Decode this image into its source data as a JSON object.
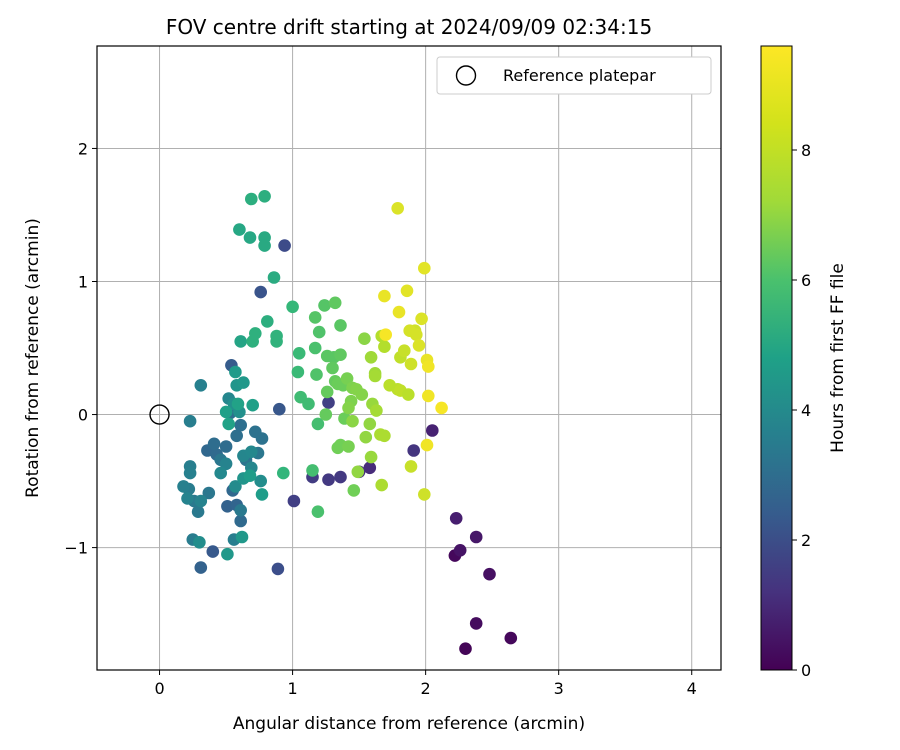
{
  "chart_data": {
    "type": "scatter",
    "title": "FOV centre drift starting at 2024/09/09 02:34:15",
    "xlabel": "Angular distance from reference (arcmin)",
    "ylabel": "Rotation from reference (arcmin)",
    "xlim": [
      -0.47,
      4.22
    ],
    "ylim": [
      -1.92,
      2.77
    ],
    "xticks": [
      0,
      1,
      2,
      3,
      4
    ],
    "xtick_labels": [
      "0",
      "1",
      "2",
      "3",
      "4"
    ],
    "yticks": [
      -1,
      0,
      1,
      2
    ],
    "ytick_labels": [
      "−1",
      "0",
      "1",
      "2"
    ],
    "grid": true,
    "colormap": "viridis",
    "colorbar": {
      "label": "Hours from first FF file",
      "range": [
        0,
        9.6
      ],
      "ticks": [
        0,
        2,
        4,
        6,
        8
      ],
      "tick_labels": [
        "0",
        "2",
        "4",
        "6",
        "8"
      ]
    },
    "legend": {
      "position": "top-right",
      "entries": [
        "Reference platepar"
      ]
    },
    "reference_point": {
      "x": 0,
      "y": 0
    },
    "point_order": "x, y, hours from first FF file",
    "points": [
      [
        2.22,
        -1.06,
        0.2
      ],
      [
        2.3,
        -1.76,
        0.1
      ],
      [
        2.38,
        -1.57,
        0.3
      ],
      [
        2.48,
        -1.2,
        0.4
      ],
      [
        2.26,
        -1.02,
        0.5
      ],
      [
        2.64,
        -1.68,
        0.2
      ],
      [
        2.38,
        -0.92,
        0.6
      ],
      [
        2.23,
        -0.78,
        0.8
      ],
      [
        2.05,
        -0.12,
        0.9
      ],
      [
        1.58,
        -0.4,
        1.2
      ],
      [
        1.5,
        -0.43,
        1.3
      ],
      [
        1.91,
        -0.27,
        1.5
      ],
      [
        1.36,
        -0.47,
        1.6
      ],
      [
        1.27,
        -0.49,
        1.6
      ],
      [
        1.15,
        -0.47,
        1.7
      ],
      [
        1.01,
        -0.65,
        1.8
      ],
      [
        1.27,
        0.09,
        1.8
      ],
      [
        0.94,
        1.27,
        2.2
      ],
      [
        0.89,
        -1.16,
        2.3
      ],
      [
        0.76,
        0.92,
        2.5
      ],
      [
        0.9,
        0.04,
        2.6
      ],
      [
        0.4,
        -1.03,
        2.7
      ],
      [
        0.54,
        0.37,
        2.8
      ],
      [
        0.31,
        -1.15,
        3.0
      ],
      [
        0.51,
        -0.69,
        3.0
      ],
      [
        0.58,
        -0.68,
        3.1
      ],
      [
        0.55,
        -0.57,
        3.2
      ],
      [
        0.61,
        -0.8,
        3.3
      ],
      [
        0.36,
        -0.27,
        3.2
      ],
      [
        0.43,
        -0.3,
        3.3
      ],
      [
        0.5,
        -0.24,
        3.4
      ],
      [
        0.58,
        -0.16,
        3.5
      ],
      [
        0.41,
        -0.22,
        3.4
      ],
      [
        0.53,
        0.01,
        3.5
      ],
      [
        0.61,
        -0.08,
        3.5
      ],
      [
        0.72,
        -0.13,
        3.6
      ],
      [
        0.77,
        -0.18,
        3.6
      ],
      [
        0.65,
        -0.34,
        3.7
      ],
      [
        0.74,
        -0.29,
        3.8
      ],
      [
        0.46,
        -0.34,
        3.8
      ],
      [
        0.37,
        -0.59,
        3.8
      ],
      [
        0.26,
        -0.65,
        3.9
      ],
      [
        0.22,
        -0.56,
        4.0
      ],
      [
        0.29,
        -0.73,
        3.9
      ],
      [
        0.25,
        -0.94,
        4.0
      ],
      [
        0.56,
        -0.94,
        4.1
      ],
      [
        0.61,
        -0.72,
        3.9
      ],
      [
        0.23,
        -0.39,
        4.1
      ],
      [
        0.23,
        -0.44,
        4.2
      ],
      [
        0.18,
        -0.54,
        4.2
      ],
      [
        0.31,
        -0.65,
        4.3
      ],
      [
        0.21,
        -0.63,
        4.3
      ],
      [
        0.23,
        -0.05,
        4.1
      ],
      [
        0.31,
        0.22,
        4.2
      ],
      [
        0.52,
        0.12,
        4.4
      ],
      [
        0.63,
        -0.31,
        4.4
      ],
      [
        0.5,
        -0.37,
        4.3
      ],
      [
        0.46,
        -0.44,
        4.5
      ],
      [
        0.57,
        -0.54,
        4.6
      ],
      [
        0.69,
        -0.4,
        4.4
      ],
      [
        0.69,
        -0.28,
        4.5
      ],
      [
        0.76,
        -0.5,
        4.7
      ],
      [
        0.3,
        -0.96,
        4.7
      ],
      [
        0.56,
        0.08,
        4.8
      ],
      [
        0.6,
        0.02,
        4.8
      ],
      [
        0.63,
        -0.48,
        5.0
      ],
      [
        0.62,
        -0.92,
        5.1
      ],
      [
        0.51,
        -1.05,
        5.1
      ],
      [
        0.58,
        0.22,
        5.0
      ],
      [
        0.57,
        0.32,
        5.2
      ],
      [
        0.63,
        0.24,
        5.1
      ],
      [
        0.68,
        -0.46,
        5.3
      ],
      [
        0.77,
        -0.6,
        5.3
      ],
      [
        0.5,
        0.02,
        5.4
      ],
      [
        0.52,
        -0.07,
        5.5
      ],
      [
        0.59,
        0.08,
        5.5
      ],
      [
        0.7,
        0.07,
        5.4
      ],
      [
        0.61,
        0.55,
        5.6
      ],
      [
        0.6,
        1.39,
        5.7
      ],
      [
        0.68,
        1.33,
        5.7
      ],
      [
        0.79,
        1.33,
        5.8
      ],
      [
        0.79,
        1.27,
        5.8
      ],
      [
        0.86,
        1.03,
        5.9
      ],
      [
        0.69,
        1.62,
        6.0
      ],
      [
        0.79,
        1.64,
        6.0
      ],
      [
        0.81,
        0.7,
        6.0
      ],
      [
        0.7,
        0.55,
        6.1
      ],
      [
        0.72,
        0.61,
        6.1
      ],
      [
        0.88,
        0.55,
        6.2
      ],
      [
        0.88,
        0.59,
        6.2
      ],
      [
        0.93,
        -0.44,
        6.3
      ],
      [
        1.0,
        0.81,
        6.4
      ],
      [
        1.05,
        0.46,
        6.5
      ],
      [
        1.04,
        0.32,
        6.5
      ],
      [
        1.06,
        0.13,
        6.6
      ],
      [
        1.12,
        0.08,
        6.6
      ],
      [
        1.15,
        -0.42,
        6.7
      ],
      [
        1.19,
        -0.07,
        6.7
      ],
      [
        1.19,
        -0.73,
        6.8
      ],
      [
        1.17,
        0.5,
        6.8
      ],
      [
        1.18,
        0.3,
        6.9
      ],
      [
        1.2,
        0.62,
        6.9
      ],
      [
        1.24,
        0.82,
        7.0
      ],
      [
        1.17,
        0.73,
        7.0
      ],
      [
        1.26,
        0.44,
        7.1
      ],
      [
        1.31,
        0.43,
        7.1
      ],
      [
        1.32,
        0.84,
        7.2
      ],
      [
        1.3,
        0.35,
        7.2
      ],
      [
        1.26,
        0.17,
        7.3
      ],
      [
        1.32,
        0.25,
        7.3
      ],
      [
        1.25,
        0.0,
        7.3
      ],
      [
        1.36,
        0.67,
        7.1
      ],
      [
        1.36,
        0.45,
        7.2
      ],
      [
        1.34,
        0.23,
        7.4
      ],
      [
        1.38,
        0.22,
        7.4
      ],
      [
        1.39,
        -0.03,
        7.4
      ],
      [
        1.36,
        -0.23,
        7.5
      ],
      [
        1.34,
        -0.25,
        7.5
      ],
      [
        1.46,
        -0.57,
        7.5
      ],
      [
        1.42,
        -0.24,
        7.6
      ],
      [
        1.41,
        0.27,
        7.6
      ],
      [
        1.45,
        0.2,
        7.7
      ],
      [
        1.44,
        0.1,
        7.7
      ],
      [
        1.48,
        0.19,
        7.8
      ],
      [
        1.52,
        0.15,
        7.8
      ],
      [
        1.54,
        0.57,
        7.9
      ],
      [
        1.45,
        -0.05,
        7.9
      ],
      [
        1.42,
        0.05,
        7.8
      ],
      [
        1.55,
        -0.17,
        8.0
      ],
      [
        1.49,
        -0.43,
        8.0
      ],
      [
        1.58,
        -0.07,
        8.0
      ],
      [
        1.59,
        -0.32,
        8.1
      ],
      [
        1.6,
        0.08,
        8.1
      ],
      [
        1.59,
        0.43,
        8.2
      ],
      [
        1.62,
        0.31,
        8.2
      ],
      [
        1.62,
        0.29,
        8.3
      ],
      [
        1.63,
        0.03,
        8.3
      ],
      [
        1.66,
        -0.15,
        8.4
      ],
      [
        1.67,
        -0.53,
        8.4
      ],
      [
        1.69,
        -0.16,
        8.4
      ],
      [
        1.67,
        0.59,
        8.5
      ],
      [
        1.69,
        0.51,
        8.5
      ],
      [
        1.73,
        0.22,
        8.6
      ],
      [
        1.79,
        0.19,
        8.6
      ],
      [
        1.81,
        0.18,
        8.7
      ],
      [
        1.87,
        0.15,
        8.6
      ],
      [
        1.81,
        0.43,
        8.7
      ],
      [
        1.84,
        0.48,
        8.8
      ],
      [
        1.89,
        -0.39,
        8.8
      ],
      [
        1.99,
        -0.6,
        8.9
      ],
      [
        1.89,
        0.38,
        8.9
      ],
      [
        1.92,
        0.63,
        8.9
      ],
      [
        1.88,
        0.63,
        9.0
      ],
      [
        1.93,
        0.6,
        9.0
      ],
      [
        1.95,
        0.52,
        9.1
      ],
      [
        1.97,
        0.72,
        9.1
      ],
      [
        1.99,
        1.1,
        9.2
      ],
      [
        1.79,
        1.55,
        9.1
      ],
      [
        1.86,
        0.93,
        9.2
      ],
      [
        1.69,
        0.89,
        9.3
      ],
      [
        1.8,
        0.77,
        9.3
      ],
      [
        2.01,
        0.41,
        9.3
      ],
      [
        2.02,
        0.36,
        9.4
      ],
      [
        2.02,
        0.14,
        9.4
      ],
      [
        2.01,
        -0.23,
        9.4
      ],
      [
        2.12,
        0.05,
        9.5
      ],
      [
        1.7,
        0.6,
        9.5
      ]
    ]
  }
}
